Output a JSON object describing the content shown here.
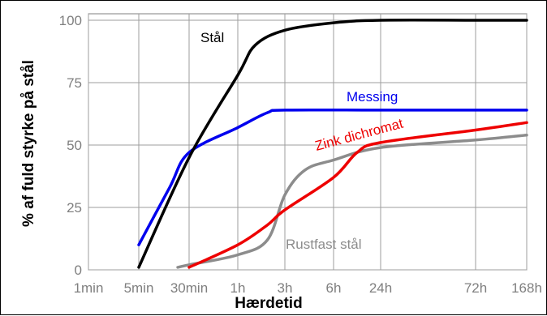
{
  "chart_data": {
    "type": "line",
    "xlabel": "Hærdetid",
    "ylabel": "% af fuld styrke på stål",
    "x_ticks": [
      "1min",
      "5min",
      "30min",
      "1h",
      "3h",
      "6h",
      "24h",
      "72h",
      "168h"
    ],
    "y_ticks": [
      "0",
      "25",
      "50",
      "75",
      "100"
    ],
    "ylim": [
      0,
      100
    ],
    "grid": "vertical lines at x ticks, horizontal lines at y ticks",
    "series": [
      {
        "name": "Stål",
        "color": "#000000",
        "points": [
          [
            "5min",
            1
          ],
          [
            "30min",
            45
          ],
          [
            "1h",
            78
          ],
          [
            "1.5h",
            90
          ],
          [
            "3h",
            96
          ],
          [
            "6h",
            99
          ],
          [
            "24h",
            100
          ],
          [
            "72h",
            100
          ],
          [
            "168h",
            100
          ]
        ]
      },
      {
        "name": "Messing",
        "color": "#0000ee",
        "points": [
          [
            "5min",
            10
          ],
          [
            "15min",
            33
          ],
          [
            "30min",
            47
          ],
          [
            "1h",
            57
          ],
          [
            "2h",
            63
          ],
          [
            "3h",
            64
          ],
          [
            "24h",
            64
          ],
          [
            "72h",
            64
          ],
          [
            "168h",
            64
          ]
        ]
      },
      {
        "name": "Zink dichromat",
        "color": "#ee0000",
        "points": [
          [
            "30min",
            1
          ],
          [
            "1h",
            10
          ],
          [
            "2h",
            18
          ],
          [
            "3h",
            24
          ],
          [
            "6h",
            37
          ],
          [
            "12h",
            47
          ],
          [
            "24h",
            51
          ],
          [
            "72h",
            56
          ],
          [
            "168h",
            59
          ]
        ]
      },
      {
        "name": "Rustfast stål",
        "color": "#8c8c8c",
        "points": [
          [
            "20min",
            1
          ],
          [
            "30min",
            2
          ],
          [
            "1h",
            6
          ],
          [
            "2h",
            12
          ],
          [
            "3h",
            30
          ],
          [
            "4h",
            40
          ],
          [
            "6h",
            44
          ],
          [
            "24h",
            49
          ],
          [
            "72h",
            52
          ],
          [
            "168h",
            54
          ]
        ]
      }
    ]
  }
}
